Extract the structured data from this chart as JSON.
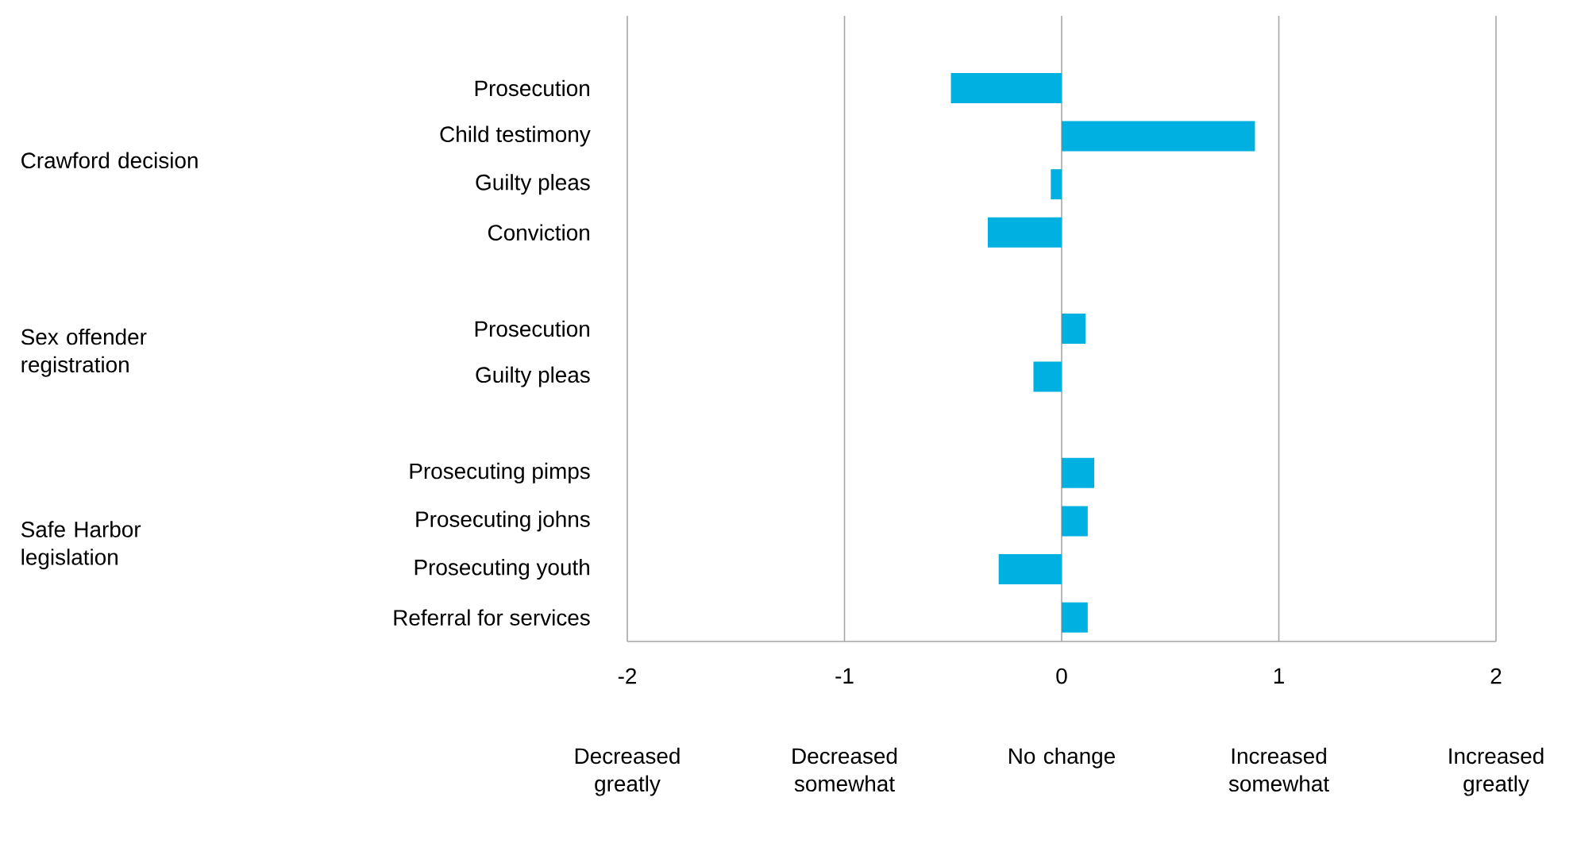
{
  "chart_data": {
    "type": "bar",
    "orientation": "horizontal",
    "categories": [
      "Prosecution",
      "Child testimony",
      "Guilty pleas",
      "Conviction",
      null,
      "Prosecution",
      "Guilty pleas",
      null,
      "Prosecuting pimps",
      "Prosecuting johns",
      "Prosecuting youth",
      "Referral for services"
    ],
    "values": [
      -0.51,
      0.89,
      -0.05,
      -0.34,
      null,
      0.11,
      -0.13,
      null,
      0.15,
      0.12,
      -0.29,
      0.12
    ],
    "color": "#00b0e0",
    "xlim": [
      -2,
      2
    ],
    "xticks": [
      -2,
      -1,
      0,
      1,
      2
    ],
    "grid": "x",
    "annotations": [
      "Crawford decision",
      "Sex offender registration",
      "Safe Harbor legislation",
      "Decreased greatly",
      "Decreased somewhat",
      "No change",
      "Increased somewhat",
      "Increased greatly"
    ]
  }
}
